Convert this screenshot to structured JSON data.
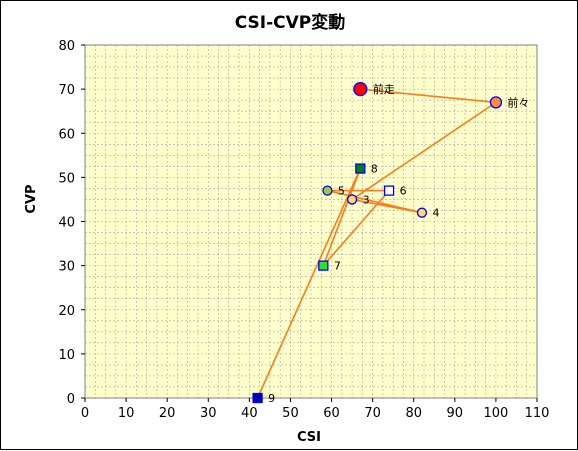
{
  "chart_data": {
    "type": "scatter",
    "title": "CSI-CVP変動",
    "xlabel": "CSI",
    "ylabel": "CVP",
    "xlim": [
      0,
      110
    ],
    "ylim": [
      0,
      80
    ],
    "xticks": [
      0,
      10,
      20,
      30,
      40,
      50,
      60,
      70,
      80,
      90,
      100,
      110
    ],
    "yticks": [
      0,
      10,
      20,
      30,
      40,
      50,
      60,
      70,
      80
    ],
    "grid": true,
    "plot_background": "#ffffcc",
    "grid_color": "#a8a8a8",
    "line_color": "#ff7a1a",
    "points": [
      {
        "label": "前走",
        "x": 67,
        "y": 70,
        "shape": "circle",
        "fill": "#ff0000",
        "stroke": "#0000ff",
        "size": "large"
      },
      {
        "label": "前々",
        "x": 100,
        "y": 67,
        "shape": "circle",
        "fill": "#ff8c3c",
        "stroke": "#0000ff",
        "size": "medium"
      },
      {
        "label": "3",
        "x": 65,
        "y": 45,
        "shape": "circle",
        "fill": "#ffd966",
        "stroke": "#0000ff",
        "size": "small"
      },
      {
        "label": "4",
        "x": 82,
        "y": 42,
        "shape": "circle",
        "fill": "#ffd966",
        "stroke": "#0000ff",
        "size": "small"
      },
      {
        "label": "5",
        "x": 59,
        "y": 47,
        "shape": "circle",
        "fill": "#9acd32",
        "stroke": "#0000ff",
        "size": "small"
      },
      {
        "label": "6",
        "x": 74,
        "y": 47,
        "shape": "square",
        "fill": "#ffffff",
        "stroke": "#0000ff",
        "size": "small"
      },
      {
        "label": "7",
        "x": 58,
        "y": 30,
        "shape": "square",
        "fill": "#33dd33",
        "stroke": "#0000ff",
        "size": "small"
      },
      {
        "label": "8",
        "x": 67,
        "y": 52,
        "shape": "square",
        "fill": "#008000",
        "stroke": "#0000ff",
        "size": "small"
      },
      {
        "label": "9",
        "x": 42,
        "y": 0,
        "shape": "square",
        "fill": "#0000aa",
        "stroke": "#0000ff",
        "size": "small"
      }
    ]
  }
}
